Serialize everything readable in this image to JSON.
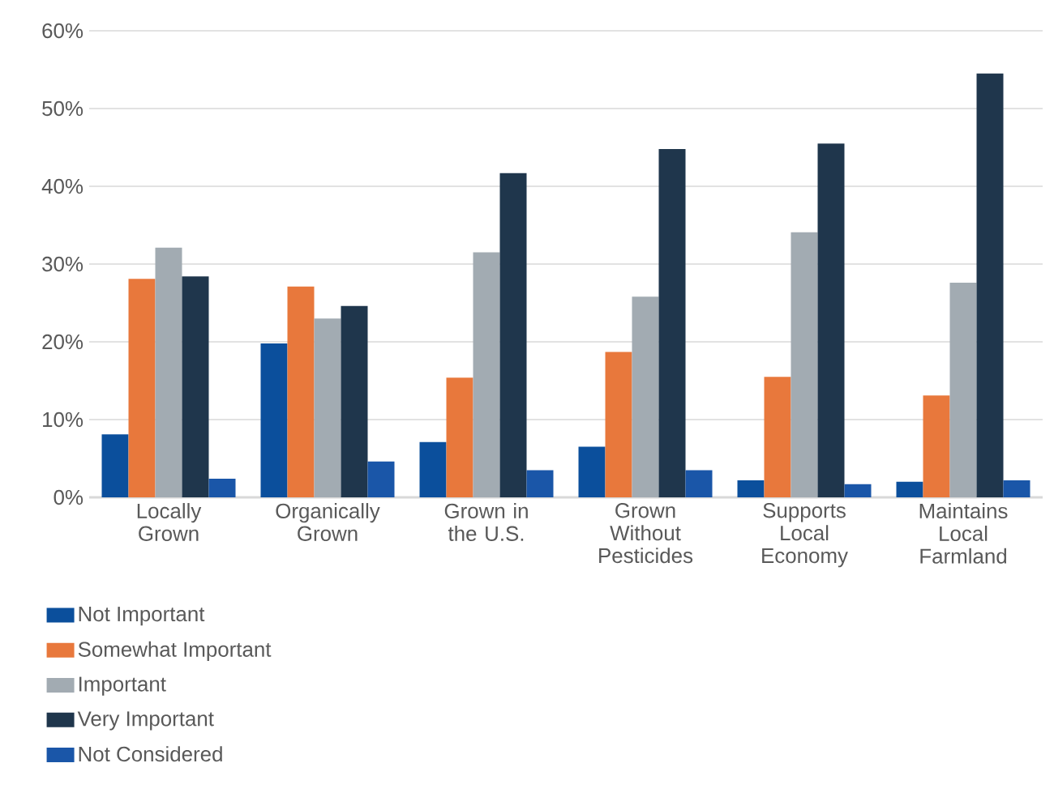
{
  "chart_data": {
    "type": "bar",
    "categories": [
      "Locally Grown",
      "Organically Grown",
      "Grown in the U.S.",
      "Grown Without Pesticides",
      "Supports Local Economy",
      "Maintains Local Farmland"
    ],
    "series": [
      {
        "name": "Not Important",
        "color": "#0b4f9c",
        "values": [
          8.1,
          19.8,
          7.1,
          6.5,
          2.2,
          2.0
        ]
      },
      {
        "name": "Somewhat Important",
        "color": "#e8783c",
        "values": [
          28.1,
          27.1,
          15.4,
          18.7,
          15.5,
          13.1
        ]
      },
      {
        "name": "Important",
        "color": "#a2abb2",
        "values": [
          32.1,
          23.0,
          31.5,
          25.8,
          34.1,
          27.6
        ]
      },
      {
        "name": "Very Important",
        "color": "#1f364c",
        "values": [
          28.4,
          24.6,
          41.7,
          44.8,
          45.5,
          54.5
        ]
      },
      {
        "name": "Not Considered",
        "color": "#1a56a8",
        "values": [
          2.4,
          4.6,
          3.5,
          3.5,
          1.7,
          2.2
        ]
      }
    ],
    "ylim": [
      0,
      60
    ],
    "yticks": [
      {
        "value": 0,
        "label": "0%"
      },
      {
        "value": 10,
        "label": "10%"
      },
      {
        "value": 20,
        "label": "20%"
      },
      {
        "value": 30,
        "label": "30%"
      },
      {
        "value": 40,
        "label": "40%"
      },
      {
        "value": 50,
        "label": "50%"
      },
      {
        "value": 60,
        "label": "60%"
      }
    ],
    "grid": "y",
    "legend": "bottom left"
  }
}
